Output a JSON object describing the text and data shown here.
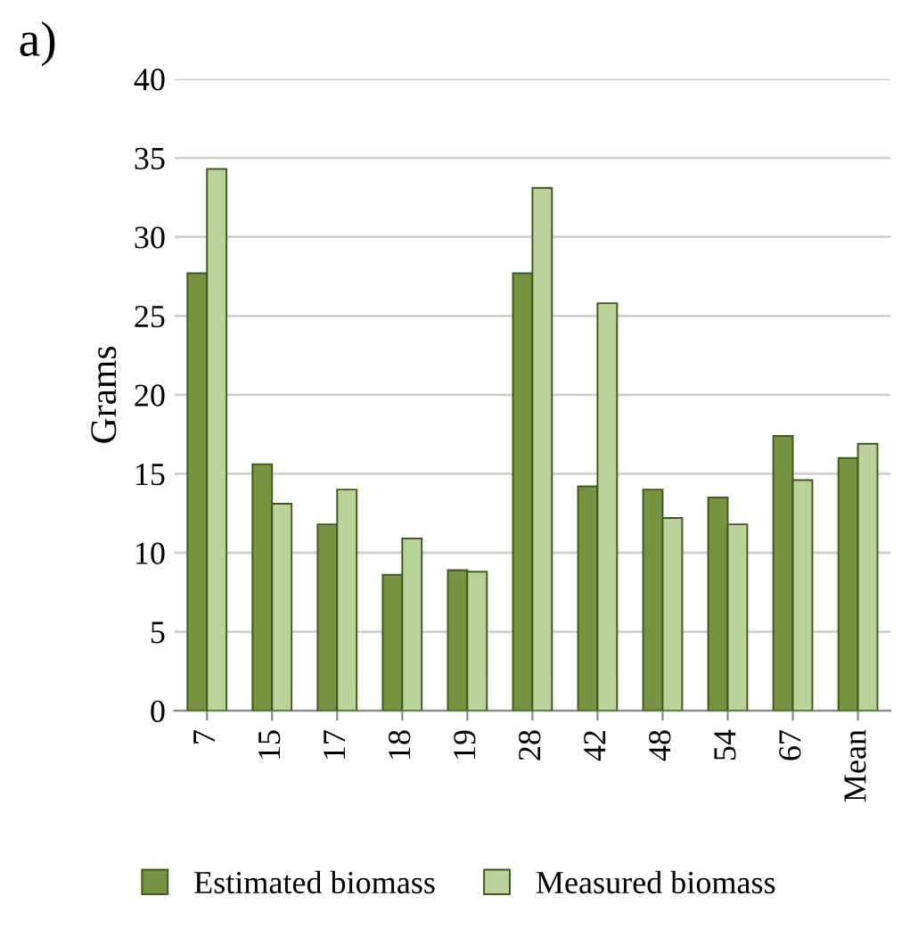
{
  "chart_data": {
    "type": "bar",
    "ylabel": "Grams",
    "annotations": [
      "a)"
    ],
    "categories": [
      "7",
      "15",
      "17",
      "18",
      "19",
      "28",
      "42",
      "48",
      "54",
      "67",
      "Mean"
    ],
    "series": [
      {
        "name": "Estimated biomass",
        "color": "#759340",
        "values": [
          27.7,
          15.6,
          11.8,
          8.6,
          8.9,
          27.7,
          14.2,
          14.0,
          13.5,
          17.4,
          16.0
        ]
      },
      {
        "name": "Measured biomass",
        "color": "#b9d39a",
        "values": [
          34.3,
          13.1,
          14.0,
          10.9,
          8.8,
          33.1,
          25.8,
          12.2,
          11.8,
          14.6,
          16.9
        ]
      }
    ],
    "ylim": [
      0,
      40
    ],
    "yticks": [
      0,
      5,
      10,
      15,
      20,
      25,
      30,
      35,
      40
    ],
    "grid": "y",
    "legend": "bottom"
  }
}
